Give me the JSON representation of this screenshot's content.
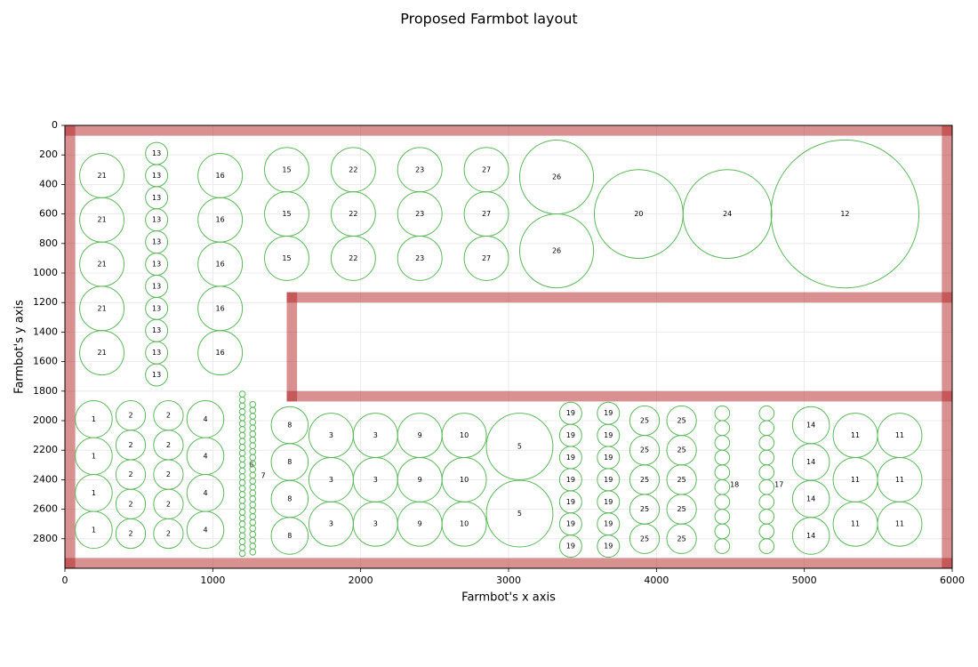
{
  "chart_data": {
    "type": "layout",
    "title": "Proposed Farmbot layout",
    "xlabel": "Farmbot's x axis",
    "ylabel": "Farmbot's y axis",
    "xlim": [
      0,
      6000
    ],
    "ylim": [
      0,
      3000
    ],
    "y_inverted": true,
    "xticks": [
      0,
      1000,
      2000,
      3000,
      4000,
      5000,
      6000
    ],
    "yticks": [
      0,
      200,
      400,
      600,
      800,
      1000,
      1200,
      1400,
      1600,
      1800,
      2000,
      2200,
      2400,
      2600,
      2800
    ],
    "grid": true,
    "wall_color": "#b22222",
    "plant_color": "#5cb85c",
    "walls": [
      [
        0,
        0,
        6000,
        70
      ],
      [
        0,
        0,
        70,
        3000
      ],
      [
        5930,
        0,
        6000,
        3000
      ],
      [
        0,
        2930,
        6000,
        3000
      ],
      [
        1500,
        1130,
        6000,
        1200
      ],
      [
        1500,
        1130,
        1570,
        1870
      ],
      [
        1500,
        1800,
        6000,
        1870
      ]
    ],
    "groups": [
      {
        "label": "21",
        "r": 150,
        "points": [
          [
            250,
            340
          ],
          [
            250,
            640
          ],
          [
            250,
            940
          ],
          [
            250,
            1240
          ],
          [
            250,
            1540
          ]
        ]
      },
      {
        "label": "13",
        "r": 75,
        "points": [
          [
            620,
            190
          ],
          [
            620,
            340
          ],
          [
            620,
            490
          ],
          [
            620,
            640
          ],
          [
            620,
            790
          ],
          [
            620,
            940
          ],
          [
            620,
            1090
          ],
          [
            620,
            1240
          ],
          [
            620,
            1390
          ],
          [
            620,
            1540
          ],
          [
            620,
            1690
          ]
        ]
      },
      {
        "label": "16",
        "r": 150,
        "points": [
          [
            1050,
            340
          ],
          [
            1050,
            640
          ],
          [
            1050,
            940
          ],
          [
            1050,
            1240
          ],
          [
            1050,
            1540
          ]
        ]
      },
      {
        "label": "15",
        "r": 150,
        "points": [
          [
            1500,
            300
          ],
          [
            1500,
            600
          ],
          [
            1500,
            900
          ]
        ]
      },
      {
        "label": "22",
        "r": 150,
        "points": [
          [
            1950,
            300
          ],
          [
            1950,
            600
          ],
          [
            1950,
            900
          ]
        ]
      },
      {
        "label": "23",
        "r": 150,
        "points": [
          [
            2400,
            300
          ],
          [
            2400,
            600
          ],
          [
            2400,
            900
          ]
        ]
      },
      {
        "label": "27",
        "r": 150,
        "points": [
          [
            2850,
            300
          ],
          [
            2850,
            600
          ],
          [
            2850,
            900
          ]
        ]
      },
      {
        "label": "26",
        "r": 250,
        "points": [
          [
            3325,
            350
          ],
          [
            3325,
            850
          ]
        ]
      },
      {
        "label": "20",
        "r": 300,
        "points": [
          [
            3880,
            600
          ]
        ]
      },
      {
        "label": "24",
        "r": 300,
        "points": [
          [
            4480,
            600
          ]
        ]
      },
      {
        "label": "12",
        "r": 500,
        "points": [
          [
            5275,
            600
          ]
        ]
      },
      {
        "label": "1",
        "r": 125,
        "points": [
          [
            195,
            1990
          ],
          [
            195,
            2240
          ],
          [
            195,
            2490
          ],
          [
            195,
            2740
          ]
        ]
      },
      {
        "label": "2",
        "r": 100,
        "points": [
          [
            445,
            1965
          ],
          [
            445,
            2165
          ],
          [
            445,
            2365
          ],
          [
            445,
            2565
          ],
          [
            445,
            2765
          ],
          [
            700,
            1965
          ],
          [
            700,
            2165
          ],
          [
            700,
            2365
          ],
          [
            700,
            2565
          ],
          [
            700,
            2765
          ]
        ]
      },
      {
        "label": "4",
        "r": 125,
        "points": [
          [
            950,
            1990
          ],
          [
            950,
            2240
          ],
          [
            950,
            2490
          ],
          [
            950,
            2740
          ]
        ]
      },
      {
        "label": "6",
        "r": 20,
        "label_at": [
          1263,
          2301
        ],
        "points": [
          [
            1200,
            1820
          ],
          [
            1200,
            1860
          ],
          [
            1200,
            1900
          ],
          [
            1200,
            1940
          ],
          [
            1200,
            1980
          ],
          [
            1200,
            2020
          ],
          [
            1200,
            2060
          ],
          [
            1200,
            2100
          ],
          [
            1200,
            2140
          ],
          [
            1200,
            2180
          ],
          [
            1200,
            2220
          ],
          [
            1200,
            2260
          ],
          [
            1200,
            2300
          ],
          [
            1200,
            2340
          ],
          [
            1200,
            2380
          ],
          [
            1200,
            2420
          ],
          [
            1200,
            2460
          ],
          [
            1200,
            2500
          ],
          [
            1200,
            2540
          ],
          [
            1200,
            2580
          ],
          [
            1200,
            2620
          ],
          [
            1200,
            2660
          ],
          [
            1200,
            2700
          ],
          [
            1200,
            2740
          ],
          [
            1200,
            2780
          ],
          [
            1200,
            2820
          ],
          [
            1200,
            2860
          ],
          [
            1200,
            2900
          ]
        ]
      },
      {
        "label": "7",
        "r": 20,
        "label_at": [
          1341,
          2373
        ],
        "points": [
          [
            1270,
            1890
          ],
          [
            1270,
            1930
          ],
          [
            1270,
            1970
          ],
          [
            1270,
            2010
          ],
          [
            1270,
            2050
          ],
          [
            1270,
            2090
          ],
          [
            1270,
            2130
          ],
          [
            1270,
            2170
          ],
          [
            1270,
            2210
          ],
          [
            1270,
            2250
          ],
          [
            1270,
            2290
          ],
          [
            1270,
            2330
          ],
          [
            1270,
            2370
          ],
          [
            1270,
            2410
          ],
          [
            1270,
            2450
          ],
          [
            1270,
            2490
          ],
          [
            1270,
            2530
          ],
          [
            1270,
            2570
          ],
          [
            1270,
            2610
          ],
          [
            1270,
            2650
          ],
          [
            1270,
            2690
          ],
          [
            1270,
            2730
          ],
          [
            1270,
            2770
          ],
          [
            1270,
            2810
          ],
          [
            1270,
            2850
          ],
          [
            1270,
            2890
          ]
        ]
      },
      {
        "label": "8",
        "r": 125,
        "points": [
          [
            1520,
            2030
          ],
          [
            1520,
            2280
          ],
          [
            1520,
            2530
          ],
          [
            1520,
            2780
          ]
        ]
      },
      {
        "label": "3",
        "r": 150,
        "points": [
          [
            1800,
            2100
          ],
          [
            1800,
            2400
          ],
          [
            1800,
            2700
          ],
          [
            2100,
            2100
          ],
          [
            2100,
            2400
          ],
          [
            2100,
            2700
          ]
        ]
      },
      {
        "label": "9",
        "r": 150,
        "points": [
          [
            2400,
            2100
          ],
          [
            2400,
            2400
          ],
          [
            2400,
            2700
          ]
        ]
      },
      {
        "label": "10",
        "r": 150,
        "points": [
          [
            2700,
            2100
          ],
          [
            2700,
            2400
          ],
          [
            2700,
            2700
          ]
        ]
      },
      {
        "label": "5",
        "r": 225,
        "points": [
          [
            3075,
            2175
          ],
          [
            3075,
            2630
          ]
        ]
      },
      {
        "label": "19",
        "r": 75,
        "points": [
          [
            3420,
            1950
          ],
          [
            3420,
            2100
          ],
          [
            3420,
            2250
          ],
          [
            3420,
            2400
          ],
          [
            3420,
            2550
          ],
          [
            3420,
            2700
          ],
          [
            3420,
            2850
          ],
          [
            3675,
            1950
          ],
          [
            3675,
            2100
          ],
          [
            3675,
            2250
          ],
          [
            3675,
            2400
          ],
          [
            3675,
            2550
          ],
          [
            3675,
            2700
          ],
          [
            3675,
            2850
          ]
        ]
      },
      {
        "label": "25",
        "r": 100,
        "points": [
          [
            3920,
            2000
          ],
          [
            3920,
            2200
          ],
          [
            3920,
            2400
          ],
          [
            3920,
            2600
          ],
          [
            3920,
            2800
          ],
          [
            4170,
            2000
          ],
          [
            4170,
            2200
          ],
          [
            4170,
            2400
          ],
          [
            4170,
            2600
          ],
          [
            4170,
            2800
          ]
        ]
      },
      {
        "label": "18",
        "r": 50,
        "label_at": [
          4528,
          2434
        ],
        "points": [
          [
            4445,
            1950
          ],
          [
            4445,
            2050
          ],
          [
            4445,
            2150
          ],
          [
            4445,
            2250
          ],
          [
            4445,
            2350
          ],
          [
            4445,
            2450
          ],
          [
            4445,
            2550
          ],
          [
            4445,
            2650
          ],
          [
            4445,
            2750
          ],
          [
            4445,
            2850
          ]
        ]
      },
      {
        "label": "17",
        "r": 50,
        "label_at": [
          4829,
          2434
        ],
        "points": [
          [
            4745,
            1950
          ],
          [
            4745,
            2050
          ],
          [
            4745,
            2150
          ],
          [
            4745,
            2250
          ],
          [
            4745,
            2350
          ],
          [
            4745,
            2450
          ],
          [
            4745,
            2550
          ],
          [
            4745,
            2650
          ],
          [
            4745,
            2750
          ],
          [
            4745,
            2850
          ]
        ]
      },
      {
        "label": "14",
        "r": 125,
        "points": [
          [
            5045,
            2030
          ],
          [
            5045,
            2280
          ],
          [
            5045,
            2530
          ],
          [
            5045,
            2780
          ]
        ]
      },
      {
        "label": "11",
        "r": 150,
        "points": [
          [
            5345,
            2100
          ],
          [
            5345,
            2400
          ],
          [
            5345,
            2700
          ],
          [
            5645,
            2100
          ],
          [
            5645,
            2400
          ],
          [
            5645,
            2700
          ]
        ]
      }
    ]
  }
}
